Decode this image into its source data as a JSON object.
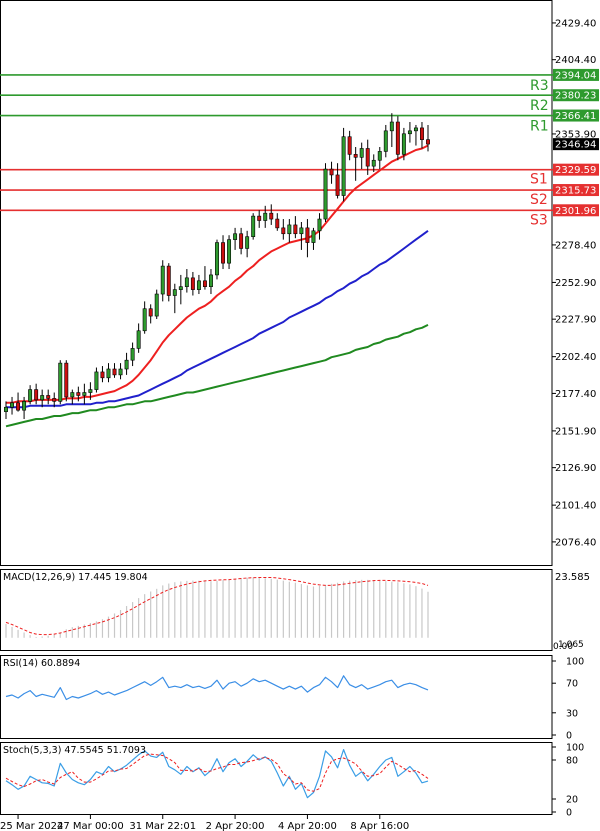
{
  "chart_data": {
    "type": "candlestick",
    "main": {
      "y_ticks": [
        "2429.40",
        "2404.40",
        "2353.90",
        "2278.40",
        "2252.90",
        "2227.90",
        "2202.40",
        "2177.40",
        "2151.90",
        "2126.90",
        "2101.40",
        "2076.40"
      ],
      "y_range": [
        2060,
        2445
      ],
      "levels": [
        {
          "label": "R3",
          "value": 2394.04,
          "tag": "2394.04",
          "color": "#2e9a2e"
        },
        {
          "label": "R2",
          "value": 2380.23,
          "tag": "2380.23",
          "color": "#2e9a2e"
        },
        {
          "label": "R1",
          "value": 2366.41,
          "tag": "2366.41",
          "color": "#2e9a2e"
        },
        {
          "label": "S1",
          "value": 2329.59,
          "tag": "2329.59",
          "color": "#e53030"
        },
        {
          "label": "S2",
          "value": 2315.73,
          "tag": "2315.73",
          "color": "#e53030"
        },
        {
          "label": "S3",
          "value": 2301.96,
          "tag": "2301.96",
          "color": "#e53030"
        }
      ],
      "current_price": {
        "value": 2346.94,
        "tag": "2346.94"
      },
      "candles": [
        [
          2165,
          2172,
          2160,
          2168
        ],
        [
          2168,
          2175,
          2163,
          2171
        ],
        [
          2171,
          2178,
          2165,
          2166
        ],
        [
          2166,
          2175,
          2160,
          2172
        ],
        [
          2172,
          2183,
          2170,
          2180
        ],
        [
          2180,
          2184,
          2170,
          2173
        ],
        [
          2173,
          2180,
          2168,
          2176
        ],
        [
          2176,
          2180,
          2170,
          2174
        ],
        [
          2174,
          2178,
          2168,
          2172
        ],
        [
          2172,
          2200,
          2170,
          2198
        ],
        [
          2198,
          2200,
          2172,
          2175
        ],
        [
          2175,
          2180,
          2170,
          2178
        ],
        [
          2178,
          2182,
          2172,
          2176
        ],
        [
          2176,
          2184,
          2170,
          2178
        ],
        [
          2178,
          2185,
          2173,
          2180
        ],
        [
          2180,
          2195,
          2178,
          2192
        ],
        [
          2192,
          2196,
          2185,
          2188
        ],
        [
          2188,
          2198,
          2185,
          2194
        ],
        [
          2194,
          2198,
          2188,
          2190
        ],
        [
          2190,
          2198,
          2187,
          2194
        ],
        [
          2194,
          2205,
          2190,
          2200
        ],
        [
          2200,
          2212,
          2196,
          2208
        ],
        [
          2208,
          2225,
          2205,
          2220
        ],
        [
          2220,
          2240,
          2218,
          2235
        ],
        [
          2235,
          2238,
          2225,
          2230
        ],
        [
          2230,
          2248,
          2228,
          2245
        ],
        [
          2245,
          2268,
          2240,
          2264
        ],
        [
          2264,
          2266,
          2240,
          2244
        ],
        [
          2244,
          2252,
          2232,
          2248
        ],
        [
          2248,
          2258,
          2238,
          2250
        ],
        [
          2250,
          2262,
          2246,
          2256
        ],
        [
          2256,
          2260,
          2244,
          2248
        ],
        [
          2248,
          2258,
          2245,
          2254
        ],
        [
          2254,
          2264,
          2248,
          2250
        ],
        [
          2250,
          2262,
          2245,
          2258
        ],
        [
          2258,
          2282,
          2255,
          2280
        ],
        [
          2280,
          2285,
          2262,
          2266
        ],
        [
          2266,
          2285,
          2262,
          2282
        ],
        [
          2282,
          2290,
          2275,
          2286
        ],
        [
          2286,
          2290,
          2272,
          2276
        ],
        [
          2276,
          2288,
          2270,
          2284
        ],
        [
          2284,
          2300,
          2282,
          2298
        ],
        [
          2298,
          2302,
          2290,
          2295
        ],
        [
          2295,
          2305,
          2290,
          2300
        ],
        [
          2300,
          2306,
          2292,
          2296
        ],
        [
          2296,
          2300,
          2288,
          2290
        ],
        [
          2290,
          2296,
          2282,
          2286
        ],
        [
          2286,
          2296,
          2280,
          2292
        ],
        [
          2292,
          2298,
          2283,
          2286
        ],
        [
          2286,
          2294,
          2275,
          2290
        ],
        [
          2290,
          2296,
          2270,
          2280
        ],
        [
          2280,
          2290,
          2275,
          2288
        ],
        [
          2288,
          2300,
          2282,
          2296
        ],
        [
          2296,
          2334,
          2294,
          2330
        ],
        [
          2330,
          2335,
          2320,
          2326
        ],
        [
          2326,
          2334,
          2310,
          2312
        ],
        [
          2312,
          2358,
          2308,
          2352
        ],
        [
          2352,
          2356,
          2336,
          2340
        ],
        [
          2340,
          2345,
          2322,
          2338
        ],
        [
          2338,
          2348,
          2330,
          2344
        ],
        [
          2344,
          2350,
          2326,
          2332
        ],
        [
          2332,
          2340,
          2328,
          2336
        ],
        [
          2336,
          2345,
          2330,
          2342
        ],
        [
          2342,
          2360,
          2338,
          2356
        ],
        [
          2356,
          2368,
          2345,
          2362
        ],
        [
          2362,
          2366,
          2336,
          2340
        ],
        [
          2340,
          2358,
          2336,
          2354
        ],
        [
          2354,
          2362,
          2348,
          2356
        ],
        [
          2356,
          2360,
          2346,
          2358
        ],
        [
          2358,
          2362,
          2344,
          2350
        ],
        [
          2350,
          2360,
          2342,
          2347
        ]
      ],
      "ma20": [
        2171,
        2171,
        2172,
        2172,
        2172,
        2173,
        2173,
        2173,
        2173,
        2173,
        2174,
        2174,
        2174,
        2175,
        2175,
        2176,
        2177,
        2178,
        2179,
        2181,
        2183,
        2186,
        2190,
        2195,
        2200,
        2206,
        2212,
        2217,
        2221,
        2225,
        2229,
        2232,
        2235,
        2237,
        2240,
        2244,
        2247,
        2250,
        2254,
        2257,
        2261,
        2264,
        2268,
        2271,
        2274,
        2276,
        2278,
        2280,
        2281,
        2282,
        2283,
        2285,
        2288,
        2293,
        2298,
        2303,
        2308,
        2313,
        2317,
        2320,
        2323,
        2326,
        2329,
        2332,
        2335,
        2337,
        2339,
        2341,
        2343,
        2344,
        2346
      ],
      "ma50": [
        2168,
        2168,
        2168,
        2168,
        2169,
        2169,
        2169,
        2169,
        2169,
        2169,
        2170,
        2170,
        2170,
        2170,
        2170,
        2171,
        2171,
        2172,
        2172,
        2173,
        2174,
        2175,
        2176,
        2178,
        2180,
        2182,
        2184,
        2186,
        2188,
        2190,
        2193,
        2195,
        2197,
        2199,
        2201,
        2203,
        2205,
        2207,
        2209,
        2211,
        2213,
        2215,
        2218,
        2220,
        2222,
        2224,
        2226,
        2229,
        2231,
        2233,
        2235,
        2237,
        2239,
        2242,
        2244,
        2247,
        2249,
        2252,
        2254,
        2257,
        2259,
        2262,
        2265,
        2267,
        2270,
        2273,
        2276,
        2279,
        2282,
        2285,
        2288
      ],
      "ma100": [
        2155,
        2156,
        2157,
        2158,
        2159,
        2160,
        2160,
        2161,
        2162,
        2162,
        2163,
        2164,
        2164,
        2165,
        2166,
        2166,
        2167,
        2168,
        2168,
        2169,
        2170,
        2170,
        2171,
        2172,
        2172,
        2173,
        2174,
        2175,
        2176,
        2177,
        2178,
        2178,
        2179,
        2180,
        2181,
        2182,
        2183,
        2184,
        2185,
        2186,
        2187,
        2188,
        2189,
        2190,
        2191,
        2192,
        2193,
        2194,
        2195,
        2196,
        2197,
        2198,
        2199,
        2200,
        2202,
        2203,
        2204,
        2205,
        2207,
        2208,
        2209,
        2211,
        2212,
        2214,
        2215,
        2216,
        2218,
        2219,
        2221,
        2222,
        2224
      ]
    },
    "macd": {
      "label": "MACD(12,26,9) 17.445 19.804",
      "y_ticks": [
        "23.585",
        "0.00",
        "1.065"
      ],
      "y_range": [
        -5,
        26
      ],
      "histogram": [
        5.2,
        4.1,
        3.0,
        2.0,
        1.0,
        0.3,
        0.5,
        0.8,
        1.2,
        2.0,
        3.2,
        4.0,
        4.5,
        5.0,
        5.6,
        6.2,
        7.0,
        8.0,
        9.2,
        10.5,
        12.0,
        13.5,
        15.0,
        16.5,
        17.5,
        18.5,
        19.8,
        20.5,
        21.0,
        21.3,
        21.5,
        21.6,
        21.6,
        21.5,
        21.4,
        21.5,
        21.8,
        22.0,
        22.3,
        22.5,
        22.7,
        22.8,
        22.7,
        22.5,
        22.3,
        22.0,
        21.6,
        21.2,
        20.8,
        20.3,
        19.8,
        19.4,
        19.6,
        20.0,
        20.4,
        20.8,
        21.3,
        21.6,
        21.8,
        21.9,
        21.9,
        21.8,
        21.6,
        21.4,
        21.2,
        21.0,
        20.6,
        20.2,
        19.5,
        18.6,
        17.4
      ],
      "signal": [
        5.8,
        5.0,
        4.0,
        3.0,
        2.0,
        1.4,
        1.2,
        1.2,
        1.4,
        1.8,
        2.4,
        3.0,
        3.6,
        4.2,
        4.8,
        5.4,
        6.0,
        6.8,
        7.6,
        8.6,
        9.8,
        11.0,
        12.3,
        13.6,
        14.8,
        16.0,
        17.2,
        18.2,
        19.0,
        19.7,
        20.3,
        20.8,
        21.2,
        21.5,
        21.7,
        21.8,
        21.9,
        22.0,
        22.2,
        22.4,
        22.6,
        22.7,
        22.8,
        22.8,
        22.8,
        22.6,
        22.3,
        22.0,
        21.6,
        21.2,
        20.7,
        20.3,
        20.0,
        19.8,
        19.8,
        20.0,
        20.3,
        20.6,
        20.9,
        21.2,
        21.4,
        21.6,
        21.7,
        21.7,
        21.6,
        21.5,
        21.4,
        21.2,
        20.9,
        20.5,
        19.8
      ]
    },
    "rsi": {
      "label": "RSI(14) 60.8894",
      "y_ticks": [
        "100",
        "70",
        "30",
        "0"
      ],
      "y_range": [
        0,
        100
      ],
      "values": [
        52,
        54,
        50,
        56,
        60,
        52,
        55,
        53,
        51,
        64,
        48,
        52,
        50,
        53,
        56,
        60,
        55,
        58,
        54,
        57,
        60,
        64,
        68,
        72,
        67,
        72,
        78,
        64,
        66,
        64,
        68,
        64,
        66,
        63,
        66,
        74,
        62,
        70,
        72,
        66,
        70,
        76,
        72,
        74,
        70,
        66,
        62,
        66,
        62,
        66,
        58,
        64,
        68,
        78,
        72,
        64,
        80,
        68,
        64,
        68,
        62,
        65,
        68,
        72,
        74,
        64,
        68,
        70,
        68,
        64,
        60.9
      ]
    },
    "stoch": {
      "label": "Stoch(5,3,3) 47.5545 51.7093",
      "y_ticks": [
        "100",
        "80",
        "20",
        "0"
      ],
      "y_range": [
        0,
        100
      ],
      "k": [
        48,
        42,
        35,
        40,
        55,
        50,
        45,
        44,
        40,
        75,
        60,
        50,
        45,
        42,
        50,
        62,
        58,
        70,
        62,
        66,
        72,
        80,
        88,
        94,
        86,
        84,
        92,
        70,
        65,
        58,
        70,
        62,
        68,
        56,
        64,
        82,
        62,
        76,
        82,
        70,
        78,
        88,
        80,
        85,
        78,
        60,
        40,
        55,
        35,
        44,
        22,
        30,
        55,
        94,
        85,
        68,
        96,
        72,
        55,
        62,
        48,
        58,
        70,
        80,
        84,
        55,
        62,
        70,
        60,
        45,
        47.6
      ],
      "d": [
        52,
        47,
        42,
        39,
        43,
        48,
        50,
        46,
        43,
        53,
        58,
        62,
        52,
        46,
        46,
        51,
        57,
        63,
        63,
        66,
        67,
        73,
        80,
        87,
        89,
        88,
        87,
        82,
        76,
        64,
        64,
        63,
        67,
        62,
        63,
        67,
        69,
        73,
        73,
        76,
        77,
        79,
        82,
        84,
        81,
        74,
        59,
        52,
        43,
        45,
        34,
        32,
        36,
        60,
        78,
        82,
        83,
        79,
        74,
        63,
        55,
        56,
        59,
        69,
        78,
        73,
        67,
        62,
        64,
        58,
        51.7
      ]
    },
    "x_ticks": [
      {
        "label": "25 Mar 2024",
        "index": 2
      },
      {
        "label": "27 Mar 00:00",
        "index": 14
      },
      {
        "label": "31 Mar 22:01",
        "index": 26
      },
      {
        "label": "2 Apr 20:00",
        "index": 38
      },
      {
        "label": "4 Apr 20:00",
        "index": 50
      },
      {
        "label": "8 Apr 16:00",
        "index": 62
      }
    ]
  },
  "colors": {
    "bull": "#2e9a2e",
    "bear": "#cc1010",
    "ma20": "#ee2020",
    "ma50": "#2020cc",
    "ma100": "#208a20",
    "macd_hist": "#c8c8c8",
    "macd_signal": "#ee2020",
    "rsi": "#3a8ee6",
    "stoch_k": "#3a9ee6",
    "stoch_d": "#ee2020"
  }
}
